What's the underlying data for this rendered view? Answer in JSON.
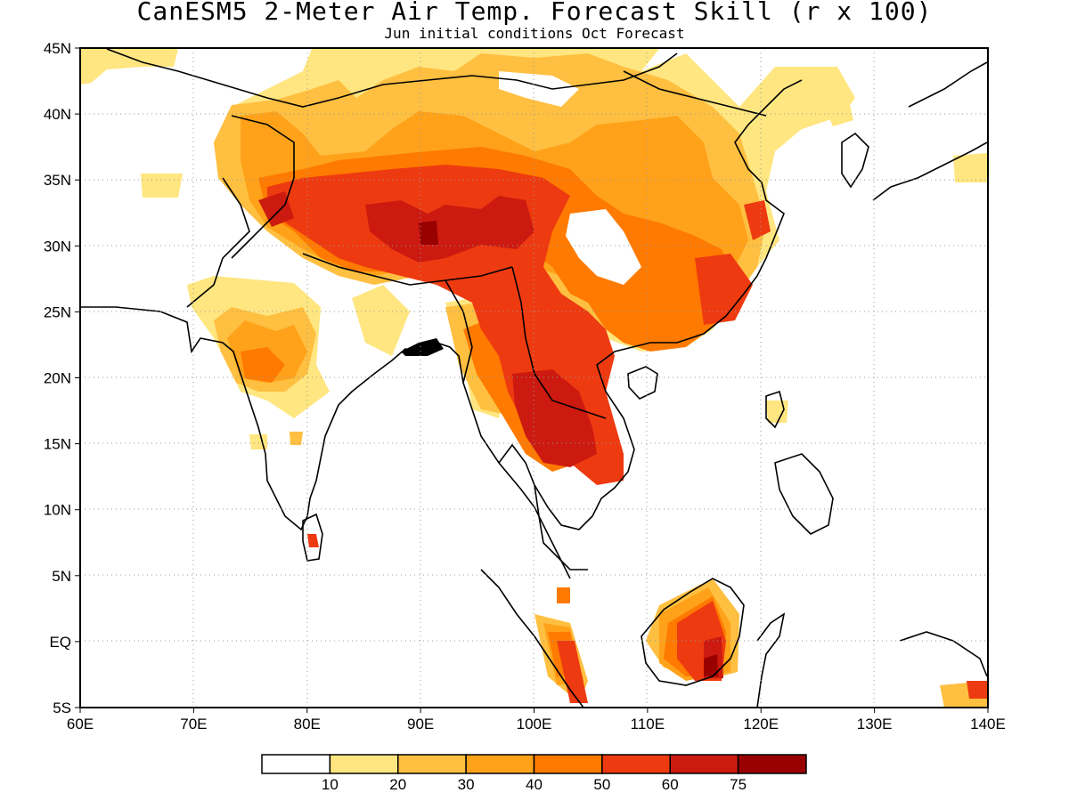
{
  "title": "CanESM5 2-Meter Air Temp. Forecast Skill (r x 100)",
  "subtitle": "Jun initial conditions  Oct Forecast",
  "map": {
    "lon_range": [
      60,
      140
    ],
    "lat_range": [
      -5,
      45
    ],
    "x_ticks": [
      "60E",
      "70E",
      "80E",
      "90E",
      "100E",
      "110E",
      "120E",
      "130E",
      "140E"
    ],
    "y_ticks": [
      "45N",
      "40N",
      "35N",
      "30N",
      "25N",
      "20N",
      "15N",
      "10N",
      "5N",
      "EQ",
      "5S"
    ],
    "grid": "dotted"
  },
  "colorbar": {
    "colors": [
      "#ffffff",
      "#ffe680",
      "#ffbf40",
      "#ffa21a",
      "#ff7a00",
      "#ee3a10",
      "#cc1a10",
      "#990000"
    ],
    "labels": [
      "10",
      "20",
      "30",
      "40",
      "50",
      "60",
      "75"
    ]
  }
}
